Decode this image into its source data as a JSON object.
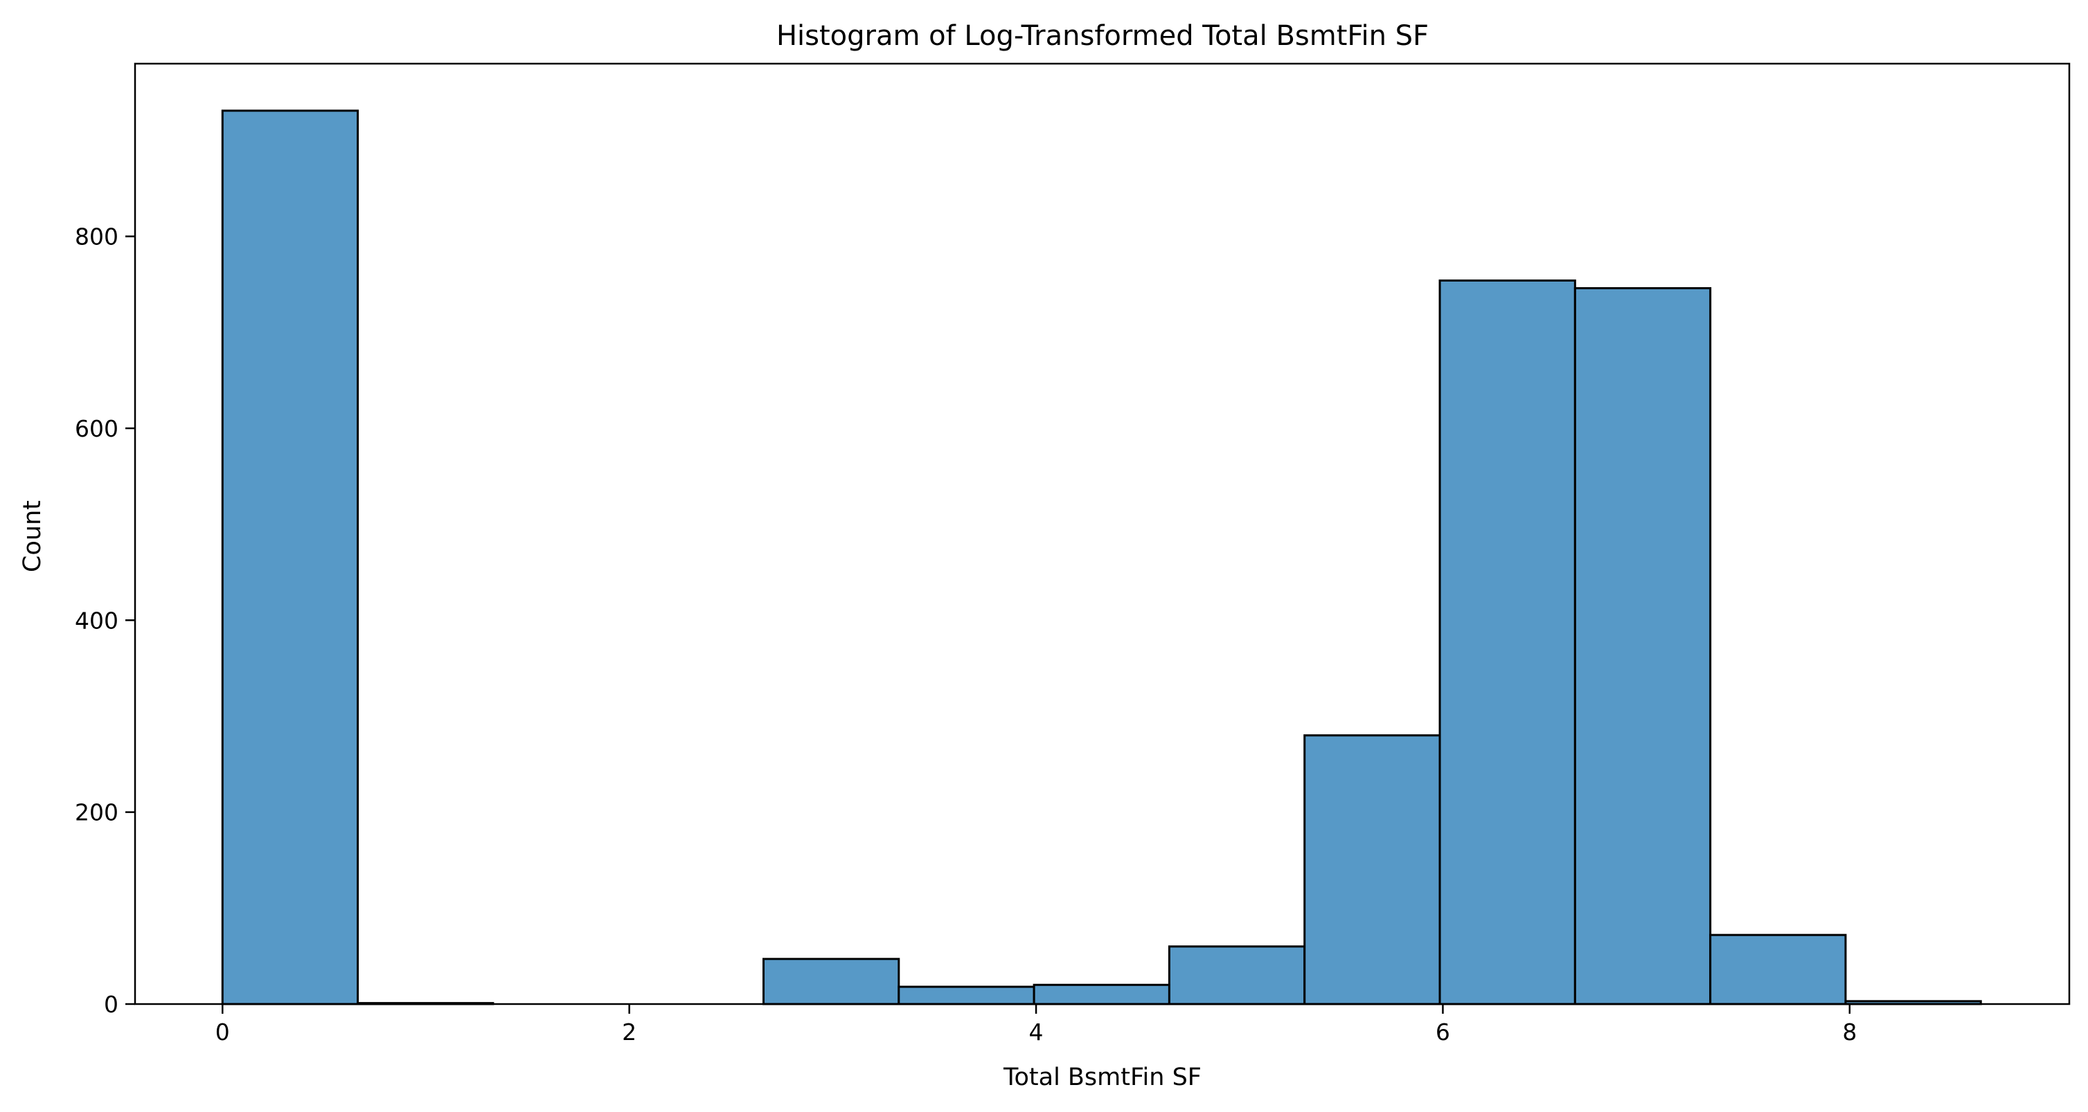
{
  "chart_data": {
    "type": "bar",
    "title": "Histogram of Log-Transformed Total BsmtFin SF",
    "xlabel": "Total BsmtFin SF",
    "ylabel": "Count",
    "bin_edges": [
      0,
      0.665,
      1.33,
      1.995,
      2.66,
      3.325,
      3.99,
      4.655,
      5.32,
      5.985,
      6.65,
      7.315,
      7.98,
      8.645
    ],
    "values": [
      931,
      1,
      0,
      0,
      47,
      18,
      20,
      60,
      280,
      754,
      746,
      72,
      3
    ],
    "xlim": [
      -0.43,
      9.08
    ],
    "ylim": [
      0,
      980
    ],
    "xticks": [
      0,
      2,
      4,
      6,
      8
    ],
    "xtick_labels": [
      "0",
      "2",
      "4",
      "6",
      "8"
    ],
    "yticks": [
      0,
      200,
      400,
      600,
      800
    ],
    "ytick_labels": [
      "0",
      "200",
      "400",
      "600",
      "800"
    ],
    "grid": false,
    "legend": "none",
    "bar_color": "#5799c7",
    "edge_color": "#000000"
  }
}
